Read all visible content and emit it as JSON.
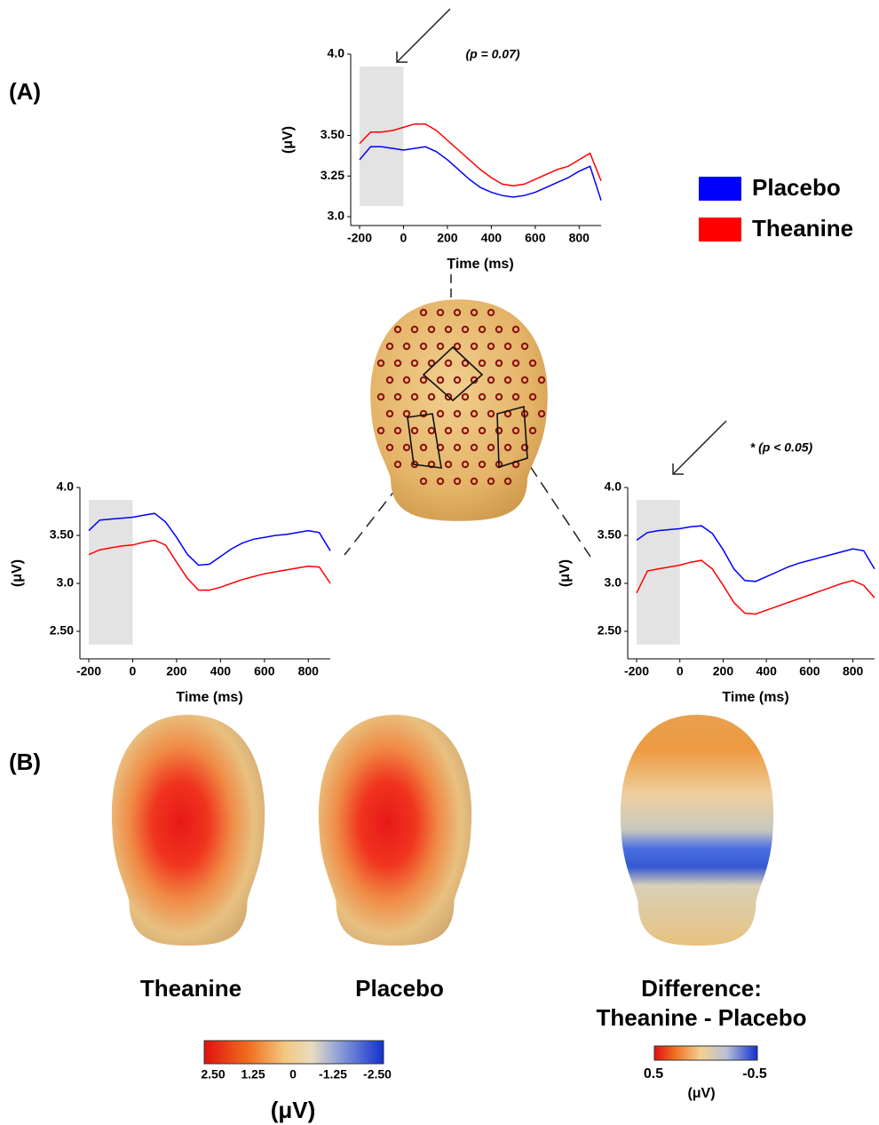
{
  "panel_labels": [
    "(A)",
    "(B)"
  ],
  "chart_data": [
    {
      "type": "line",
      "annotation": "(p = 0.07)",
      "y_label": "(μV)",
      "x_label": "Time (ms)",
      "x": [
        -200,
        -150,
        -100,
        -50,
        0,
        50,
        100,
        150,
        200,
        250,
        300,
        350,
        400,
        450,
        500,
        550,
        600,
        650,
        700,
        750,
        800,
        850,
        900
      ],
      "series": [
        {
          "name": "Placebo",
          "color": "#0000ff",
          "values": [
            3.35,
            3.43,
            3.43,
            3.42,
            3.41,
            3.42,
            3.43,
            3.4,
            3.35,
            3.29,
            3.23,
            3.18,
            3.15,
            3.13,
            3.12,
            3.13,
            3.15,
            3.18,
            3.21,
            3.24,
            3.28,
            3.31,
            3.1
          ]
        },
        {
          "name": "Theanine",
          "color": "#ff0000",
          "values": [
            3.45,
            3.52,
            3.52,
            3.53,
            3.55,
            3.57,
            3.57,
            3.53,
            3.47,
            3.41,
            3.35,
            3.29,
            3.24,
            3.2,
            3.19,
            3.2,
            3.23,
            3.26,
            3.29,
            3.31,
            3.35,
            3.39,
            3.22
          ]
        }
      ],
      "xlim": [
        -200,
        900
      ],
      "xticks": [
        -200,
        0,
        200,
        400,
        600,
        800
      ],
      "ylim": [
        3.0,
        4.0
      ],
      "yticks": [
        {
          "value": 3,
          "label": "3.0"
        },
        3.25,
        {
          "value": 3.5,
          "label": "3.50"
        },
        {
          "value": 4,
          "label": "4.0"
        }
      ],
      "baseline_window": [
        -200,
        0
      ]
    },
    {
      "type": "line",
      "y_label": "(μV)",
      "x_label": "Time (ms)",
      "x": [
        -200,
        -150,
        -100,
        -50,
        0,
        50,
        100,
        150,
        200,
        250,
        300,
        350,
        400,
        450,
        500,
        550,
        600,
        650,
        700,
        750,
        800,
        850,
        900
      ],
      "series": [
        {
          "name": "Placebo",
          "color": "#0000ff",
          "values": [
            3.55,
            3.66,
            3.67,
            3.68,
            3.69,
            3.71,
            3.73,
            3.64,
            3.48,
            3.3,
            3.19,
            3.2,
            3.28,
            3.36,
            3.42,
            3.46,
            3.48,
            3.5,
            3.51,
            3.53,
            3.55,
            3.53,
            3.34
          ]
        },
        {
          "name": "Theanine",
          "color": "#ff0000",
          "values": [
            3.3,
            3.35,
            3.37,
            3.39,
            3.4,
            3.43,
            3.45,
            3.4,
            3.22,
            3.05,
            2.93,
            2.93,
            2.96,
            3.0,
            3.04,
            3.07,
            3.1,
            3.12,
            3.14,
            3.16,
            3.18,
            3.17,
            3.0
          ]
        }
      ],
      "xlim": [
        -200,
        900
      ],
      "xticks": [
        -200,
        0,
        200,
        400,
        600,
        800
      ],
      "ylim": [
        2.25,
        4.0
      ],
      "yticks": [
        {
          "value": 2.5,
          "label": "2.50"
        },
        {
          "value": 3,
          "label": "3.0"
        },
        {
          "value": 3.5,
          "label": "3.50"
        },
        {
          "value": 4,
          "label": "4.0"
        }
      ],
      "baseline_window": [
        -200,
        0
      ]
    },
    {
      "type": "line",
      "annotation": "* (p < 0.05)",
      "y_label": "(μV)",
      "x_label": "Time (ms)",
      "x": [
        -200,
        -150,
        -100,
        -50,
        0,
        50,
        100,
        150,
        200,
        250,
        300,
        350,
        400,
        450,
        500,
        550,
        600,
        650,
        700,
        750,
        800,
        850,
        900
      ],
      "series": [
        {
          "name": "Placebo",
          "color": "#0000ff",
          "values": [
            3.45,
            3.53,
            3.55,
            3.56,
            3.57,
            3.59,
            3.6,
            3.52,
            3.35,
            3.15,
            3.03,
            3.02,
            3.07,
            3.12,
            3.17,
            3.21,
            3.24,
            3.27,
            3.3,
            3.33,
            3.36,
            3.34,
            3.15
          ]
        },
        {
          "name": "Theanine",
          "color": "#ff0000",
          "values": [
            2.9,
            3.13,
            3.15,
            3.17,
            3.19,
            3.22,
            3.24,
            3.15,
            2.98,
            2.8,
            2.69,
            2.68,
            2.72,
            2.76,
            2.8,
            2.84,
            2.88,
            2.92,
            2.96,
            3.0,
            3.03,
            2.98,
            2.85
          ]
        }
      ],
      "xlim": [
        -200,
        900
      ],
      "xticks": [
        -200,
        0,
        200,
        400,
        600,
        800
      ],
      "ylim": [
        2.25,
        4.0
      ],
      "yticks": [
        {
          "value": 2.5,
          "label": "2.50"
        },
        {
          "value": 3,
          "label": "3.0"
        },
        {
          "value": 3.5,
          "label": "3.50"
        },
        {
          "value": 4,
          "label": "4.0"
        }
      ],
      "baseline_window": [
        -200,
        0
      ]
    }
  ],
  "head_labels": [
    [
      "Theanine"
    ],
    [
      "Placebo"
    ],
    [
      "Difference:",
      "Theanine - Placebo"
    ]
  ],
  "colorbars": [
    {
      "labels": [
        "2.50",
        "1.25",
        "0",
        "-1.25",
        "-2.50"
      ],
      "unit": "(μV)"
    },
    {
      "labels": [
        "0.5",
        "-0.5"
      ],
      "unit": "(μV)"
    }
  ]
}
